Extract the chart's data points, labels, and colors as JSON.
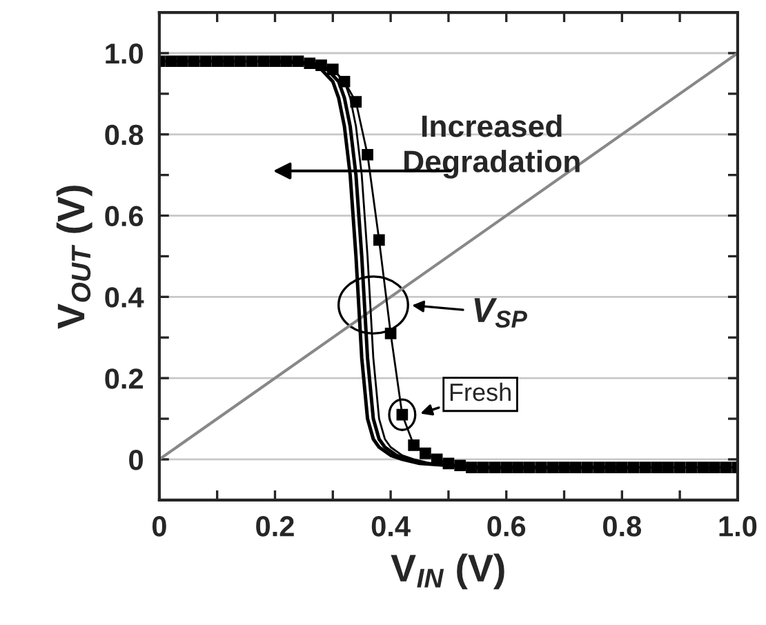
{
  "chart_data": {
    "type": "line",
    "xlabel": "V$_{IN}$ (V)",
    "ylabel": "V$_{OUT}$ (V)",
    "xlim": [
      0,
      1.0
    ],
    "ylim": [
      -0.1,
      1.1
    ],
    "xticks": [
      0,
      {
        "value": 0.1,
        "label": null
      },
      0.2,
      {
        "value": 0.3,
        "label": null
      },
      0.4,
      {
        "value": 0.5,
        "label": null
      },
      0.6,
      {
        "value": 0.7,
        "label": null
      },
      0.8,
      {
        "value": 0.9,
        "label": null
      },
      {
        "value": 1.0,
        "label": "1.0"
      }
    ],
    "yticks": [
      {
        "value": -0.1,
        "label": null
      },
      0,
      {
        "value": 0.1,
        "label": null
      },
      0.2,
      {
        "value": 0.3,
        "label": null
      },
      0.4,
      {
        "value": 0.5,
        "label": null
      },
      0.6,
      {
        "value": 0.7,
        "label": null
      },
      0.8,
      {
        "value": 0.9,
        "label": null
      },
      {
        "value": 1.0,
        "label": "1.0"
      }
    ],
    "grid": "y",
    "legend": false,
    "line_style": "solid",
    "series": [
      {
        "color": "#000000",
        "marker": "square",
        "x": [
          0,
          0.02,
          0.04,
          0.06,
          0.08,
          0.1,
          0.12,
          0.14,
          0.16,
          0.18,
          0.2,
          0.22,
          0.24,
          0.26,
          0.28,
          0.3,
          0.32,
          0.34,
          0.36,
          0.38,
          0.4,
          0.42,
          0.44,
          0.46,
          0.48,
          0.5,
          0.52,
          0.54,
          0.56,
          0.58,
          0.6,
          0.62,
          0.64,
          0.66,
          0.68,
          0.7,
          0.72,
          0.74,
          0.76,
          0.78,
          0.8,
          0.82,
          0.84,
          0.86,
          0.88,
          0.9,
          0.92,
          0.94,
          0.96,
          0.98,
          1.0
        ],
        "values": [
          0.98,
          0.98,
          0.98,
          0.98,
          0.98,
          0.98,
          0.98,
          0.98,
          0.98,
          0.98,
          0.98,
          0.98,
          0.98,
          0.975,
          0.97,
          0.96,
          0.93,
          0.88,
          0.75,
          0.54,
          0.31,
          0.11,
          0.035,
          0.015,
          0.0,
          -0.01,
          -0.015,
          -0.02,
          -0.02,
          -0.02,
          -0.02,
          -0.02,
          -0.02,
          -0.02,
          -0.02,
          -0.02,
          -0.02,
          -0.02,
          -0.02,
          -0.02,
          -0.02,
          -0.02,
          -0.02,
          -0.02,
          -0.02,
          -0.02,
          -0.02,
          -0.02,
          -0.02,
          -0.02,
          -0.02
        ]
      },
      {
        "color": "#000000",
        "marker": "none",
        "x": [
          0.2,
          0.25,
          0.28,
          0.3,
          0.31,
          0.32,
          0.33,
          0.34,
          0.35,
          0.36,
          0.37,
          0.38,
          0.4,
          0.42,
          0.45,
          0.5,
          0.55,
          0.6,
          0.7,
          0.8
        ],
        "values": [
          0.98,
          0.975,
          0.96,
          0.93,
          0.89,
          0.82,
          0.7,
          0.5,
          0.25,
          0.1,
          0.05,
          0.03,
          0.01,
          0.0,
          -0.01,
          -0.015,
          -0.02,
          -0.02,
          -0.02,
          -0.02
        ]
      },
      {
        "color": "#000000",
        "marker": "none",
        "x": [
          0.22,
          0.26,
          0.29,
          0.31,
          0.32,
          0.33,
          0.34,
          0.35,
          0.36,
          0.37,
          0.38,
          0.39,
          0.41,
          0.43,
          0.46,
          0.51,
          0.56,
          0.61,
          0.7,
          0.82
        ],
        "values": [
          0.98,
          0.975,
          0.96,
          0.93,
          0.89,
          0.82,
          0.7,
          0.5,
          0.25,
          0.1,
          0.05,
          0.03,
          0.01,
          0.0,
          -0.01,
          -0.015,
          -0.02,
          -0.02,
          -0.02,
          -0.02
        ]
      },
      {
        "color": "#000000",
        "marker": "none",
        "x": [
          0.24,
          0.27,
          0.3,
          0.32,
          0.33,
          0.34,
          0.35,
          0.36,
          0.37,
          0.38,
          0.39,
          0.4,
          0.42,
          0.44,
          0.47,
          0.52,
          0.57,
          0.62,
          0.7,
          0.84
        ],
        "values": [
          0.98,
          0.975,
          0.96,
          0.93,
          0.89,
          0.82,
          0.7,
          0.5,
          0.25,
          0.1,
          0.05,
          0.03,
          0.01,
          0.0,
          -0.01,
          -0.015,
          -0.02,
          -0.02,
          -0.02,
          -0.02
        ]
      },
      {
        "color": "#888888",
        "marker": "none",
        "x": [
          0,
          1.0
        ],
        "values": [
          0,
          1.0
        ]
      }
    ],
    "annotations": [
      "Increased\nDegradation",
      {
        "text": "V$_{SP}$",
        "x": 0.37,
        "y": 0.38
      },
      {
        "text": "Fresh",
        "x": 0.42,
        "y": 0.11
      }
    ]
  }
}
